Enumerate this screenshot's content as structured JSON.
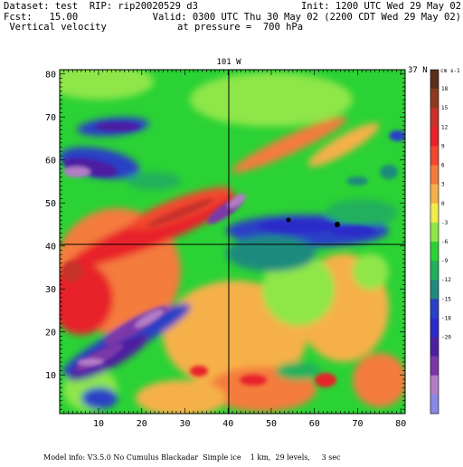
{
  "header": {
    "dataset_line": "Dataset: test  RIP: rip20020529 d3",
    "fcst_line": "Fcst:   15.00",
    "field_line": " Vertical velocity",
    "init_line": "Init: 1200 UTC Wed 29 May 02",
    "valid_line": "Valid: 0300 UTC Thu 30 May 02 (2200 CDT Wed 29 May 02)",
    "pressure_line": "at pressure =  700 hPa"
  },
  "map": {
    "top_label": "101 W",
    "right_label": "37 N",
    "x_ticks": [
      "10",
      "20",
      "30",
      "40",
      "50",
      "60",
      "70",
      "80"
    ],
    "y_ticks": [
      "10",
      "20",
      "30",
      "40",
      "50",
      "60",
      "70",
      "80"
    ],
    "x_range": [
      1,
      81
    ],
    "y_range": [
      1,
      81
    ],
    "crosshair": {
      "x": 40,
      "y": 41
    }
  },
  "colorbar": {
    "units": "cm s-1",
    "labels": [
      "18",
      "15",
      "12",
      "9",
      "6",
      "3",
      "0",
      "-3",
      "-6",
      "-9",
      "-12",
      "-15",
      "-18",
      "-20"
    ],
    "colors": [
      "#5a2f1c",
      "#8c3a1e",
      "#c8322a",
      "#e8232a",
      "#f2462f",
      "#f47b3d",
      "#f6b04a",
      "#f0ec4e",
      "#8ee64a",
      "#2bd235",
      "#21b05b",
      "#1e8b7d",
      "#2a41c6",
      "#2b2cc9",
      "#4d1fa0",
      "#7b37a8",
      "#b47dc6",
      "#8a88e6"
    ]
  },
  "footer": {
    "model_info": "Model info: V3.5.0 No Cumulus Blackadar  Simple ice    1 km,  29 levels,     3 sec"
  }
}
